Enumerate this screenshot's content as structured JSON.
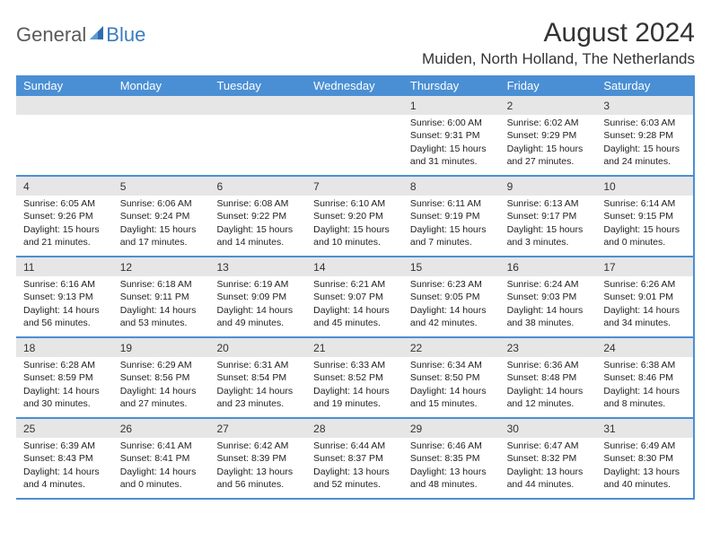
{
  "logo": {
    "general": "General",
    "blue": "Blue"
  },
  "title": "August 2024",
  "location": "Muiden, North Holland, The Netherlands",
  "colors": {
    "header_bg": "#4a8fd4",
    "header_text": "#ffffff",
    "daynum_bg": "#e6e6e6",
    "border": "#4a8fd4",
    "logo_gray": "#5a5a5a",
    "logo_blue": "#3b7bbf"
  },
  "day_names": [
    "Sunday",
    "Monday",
    "Tuesday",
    "Wednesday",
    "Thursday",
    "Friday",
    "Saturday"
  ],
  "weeks": [
    [
      null,
      null,
      null,
      null,
      {
        "n": "1",
        "sr": "6:00 AM",
        "ss": "9:31 PM",
        "dl": "15 hours and 31 minutes."
      },
      {
        "n": "2",
        "sr": "6:02 AM",
        "ss": "9:29 PM",
        "dl": "15 hours and 27 minutes."
      },
      {
        "n": "3",
        "sr": "6:03 AM",
        "ss": "9:28 PM",
        "dl": "15 hours and 24 minutes."
      }
    ],
    [
      {
        "n": "4",
        "sr": "6:05 AM",
        "ss": "9:26 PM",
        "dl": "15 hours and 21 minutes."
      },
      {
        "n": "5",
        "sr": "6:06 AM",
        "ss": "9:24 PM",
        "dl": "15 hours and 17 minutes."
      },
      {
        "n": "6",
        "sr": "6:08 AM",
        "ss": "9:22 PM",
        "dl": "15 hours and 14 minutes."
      },
      {
        "n": "7",
        "sr": "6:10 AM",
        "ss": "9:20 PM",
        "dl": "15 hours and 10 minutes."
      },
      {
        "n": "8",
        "sr": "6:11 AM",
        "ss": "9:19 PM",
        "dl": "15 hours and 7 minutes."
      },
      {
        "n": "9",
        "sr": "6:13 AM",
        "ss": "9:17 PM",
        "dl": "15 hours and 3 minutes."
      },
      {
        "n": "10",
        "sr": "6:14 AM",
        "ss": "9:15 PM",
        "dl": "15 hours and 0 minutes."
      }
    ],
    [
      {
        "n": "11",
        "sr": "6:16 AM",
        "ss": "9:13 PM",
        "dl": "14 hours and 56 minutes."
      },
      {
        "n": "12",
        "sr": "6:18 AM",
        "ss": "9:11 PM",
        "dl": "14 hours and 53 minutes."
      },
      {
        "n": "13",
        "sr": "6:19 AM",
        "ss": "9:09 PM",
        "dl": "14 hours and 49 minutes."
      },
      {
        "n": "14",
        "sr": "6:21 AM",
        "ss": "9:07 PM",
        "dl": "14 hours and 45 minutes."
      },
      {
        "n": "15",
        "sr": "6:23 AM",
        "ss": "9:05 PM",
        "dl": "14 hours and 42 minutes."
      },
      {
        "n": "16",
        "sr": "6:24 AM",
        "ss": "9:03 PM",
        "dl": "14 hours and 38 minutes."
      },
      {
        "n": "17",
        "sr": "6:26 AM",
        "ss": "9:01 PM",
        "dl": "14 hours and 34 minutes."
      }
    ],
    [
      {
        "n": "18",
        "sr": "6:28 AM",
        "ss": "8:59 PM",
        "dl": "14 hours and 30 minutes."
      },
      {
        "n": "19",
        "sr": "6:29 AM",
        "ss": "8:56 PM",
        "dl": "14 hours and 27 minutes."
      },
      {
        "n": "20",
        "sr": "6:31 AM",
        "ss": "8:54 PM",
        "dl": "14 hours and 23 minutes."
      },
      {
        "n": "21",
        "sr": "6:33 AM",
        "ss": "8:52 PM",
        "dl": "14 hours and 19 minutes."
      },
      {
        "n": "22",
        "sr": "6:34 AM",
        "ss": "8:50 PM",
        "dl": "14 hours and 15 minutes."
      },
      {
        "n": "23",
        "sr": "6:36 AM",
        "ss": "8:48 PM",
        "dl": "14 hours and 12 minutes."
      },
      {
        "n": "24",
        "sr": "6:38 AM",
        "ss": "8:46 PM",
        "dl": "14 hours and 8 minutes."
      }
    ],
    [
      {
        "n": "25",
        "sr": "6:39 AM",
        "ss": "8:43 PM",
        "dl": "14 hours and 4 minutes."
      },
      {
        "n": "26",
        "sr": "6:41 AM",
        "ss": "8:41 PM",
        "dl": "14 hours and 0 minutes."
      },
      {
        "n": "27",
        "sr": "6:42 AM",
        "ss": "8:39 PM",
        "dl": "13 hours and 56 minutes."
      },
      {
        "n": "28",
        "sr": "6:44 AM",
        "ss": "8:37 PM",
        "dl": "13 hours and 52 minutes."
      },
      {
        "n": "29",
        "sr": "6:46 AM",
        "ss": "8:35 PM",
        "dl": "13 hours and 48 minutes."
      },
      {
        "n": "30",
        "sr": "6:47 AM",
        "ss": "8:32 PM",
        "dl": "13 hours and 44 minutes."
      },
      {
        "n": "31",
        "sr": "6:49 AM",
        "ss": "8:30 PM",
        "dl": "13 hours and 40 minutes."
      }
    ]
  ],
  "labels": {
    "sunrise": "Sunrise:",
    "sunset": "Sunset:",
    "daylight": "Daylight:"
  }
}
